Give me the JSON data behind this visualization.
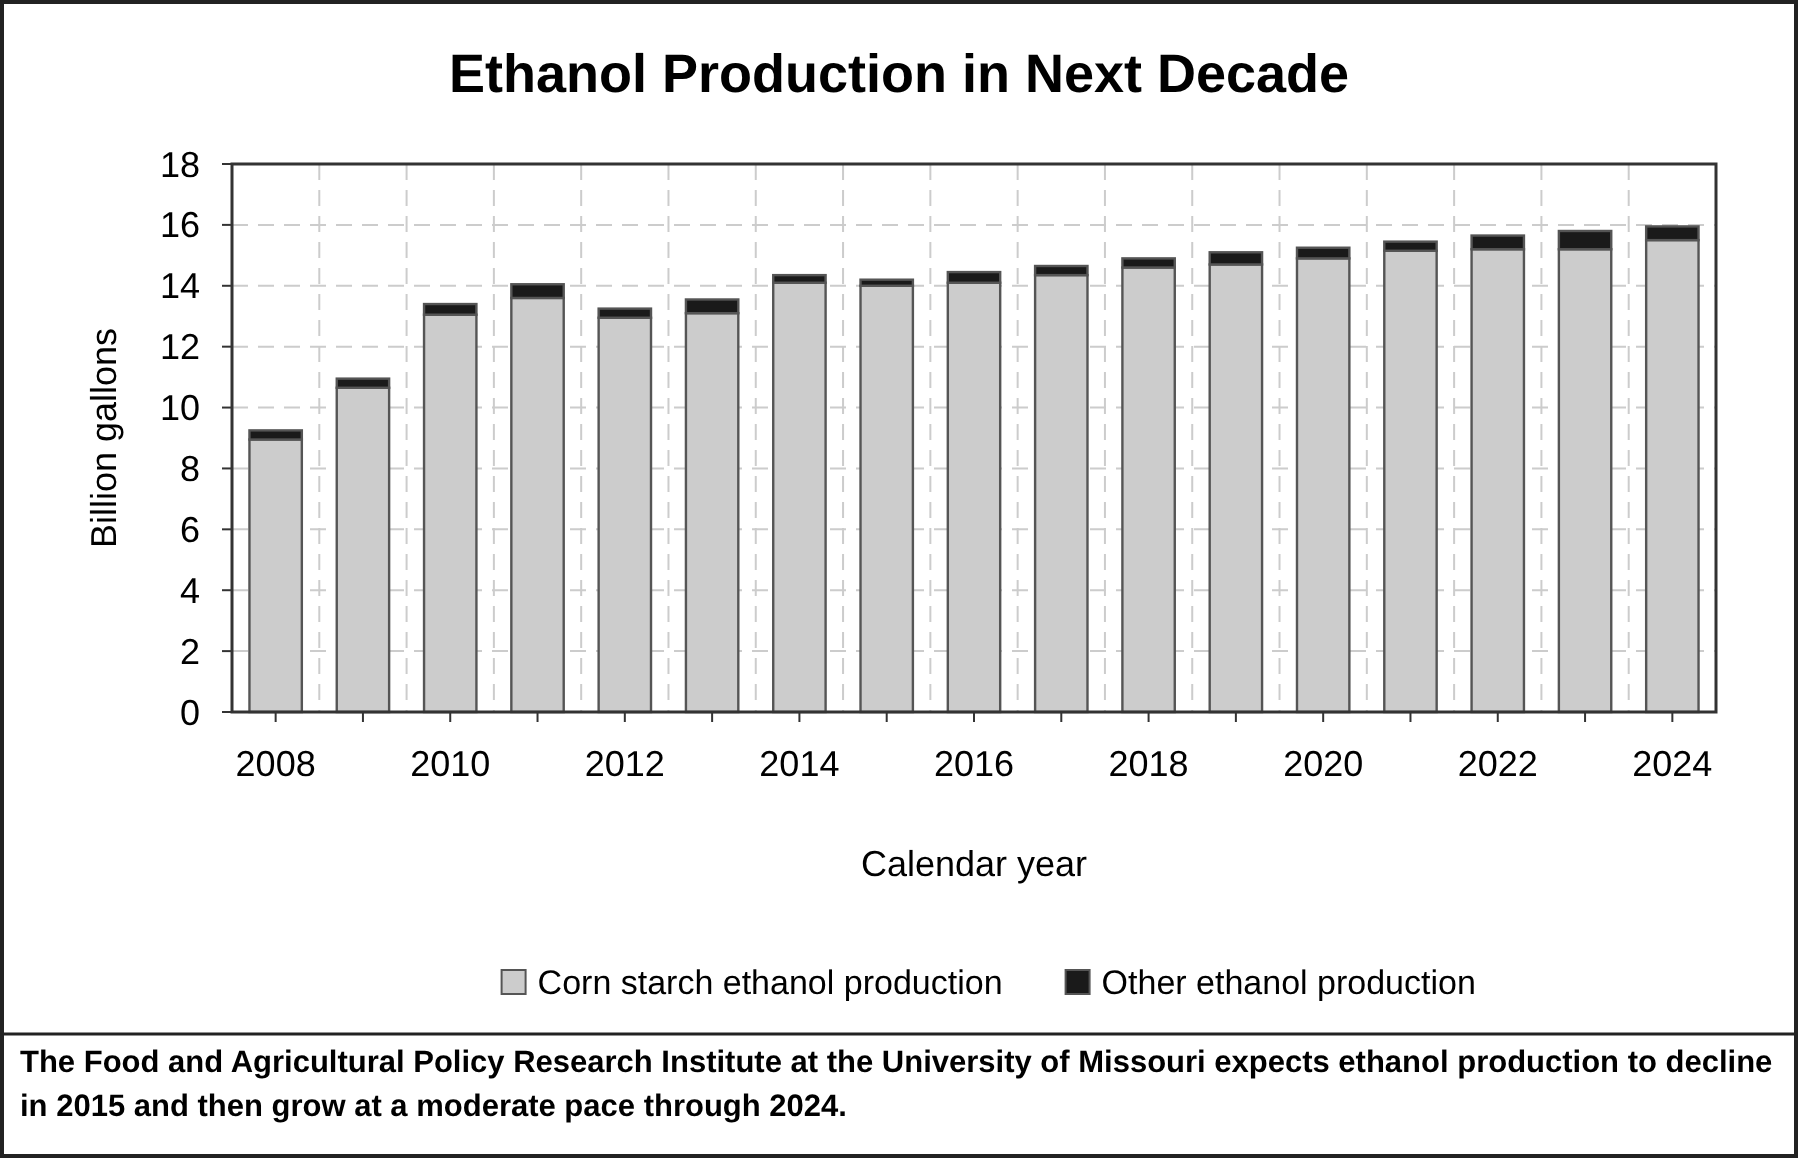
{
  "chart_data": {
    "type": "bar",
    "title": "Ethanol Production in Next Decade",
    "xlabel": "Calendar year",
    "ylabel": "Billion gallons",
    "categories": [
      "2008",
      null,
      "2010",
      null,
      "2012",
      null,
      "2014",
      null,
      "2016",
      null,
      "2018",
      null,
      "2020",
      null,
      "2022",
      null,
      "2024"
    ],
    "stacked": true,
    "series": [
      {
        "name": "Corn starch ethanol production",
        "color": "#cccccc",
        "values": [
          8.95,
          10.65,
          13.05,
          13.6,
          12.95,
          13.1,
          14.1,
          14.0,
          14.1,
          14.35,
          14.6,
          14.7,
          14.9,
          15.15,
          15.2,
          15.2,
          15.5
        ]
      },
      {
        "name": "Other ethanol production",
        "color": "#1a1a1a",
        "values": [
          0.3,
          0.3,
          0.35,
          0.45,
          0.3,
          0.45,
          0.25,
          0.2,
          0.35,
          0.3,
          0.3,
          0.4,
          0.35,
          0.3,
          0.45,
          0.6,
          0.45
        ]
      }
    ],
    "ylim": [
      0,
      18
    ],
    "yticks": [
      0,
      2,
      4,
      6,
      8,
      10,
      12,
      14,
      16,
      18
    ],
    "grid": true,
    "legend": "bottom",
    "annotations": [
      "The Food and Agricultural Policy Research Institute at the University of Missouri expects ethanol production to decline in 2015 and then grow at a moderate pace through 2024."
    ]
  }
}
